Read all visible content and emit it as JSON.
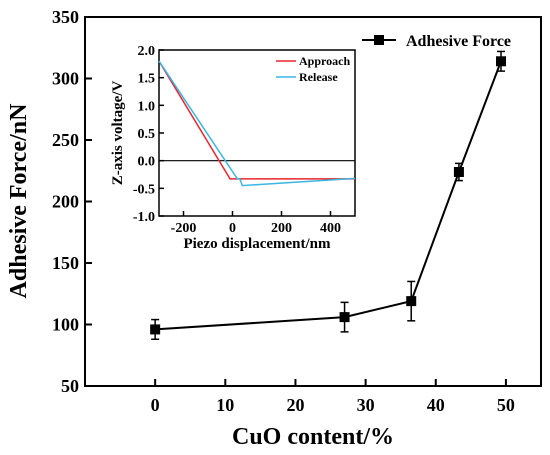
{
  "chart_data": [
    {
      "type": "line",
      "xlabel": "CuO content/%",
      "ylabel": "Adhesive Force/nN",
      "xlim": [
        -10,
        55
      ],
      "ylim": [
        50,
        350
      ],
      "xticks": [
        0,
        10,
        20,
        30,
        40,
        50
      ],
      "yticks": [
        50,
        100,
        150,
        200,
        250,
        300,
        350
      ],
      "legend_position": "top-right",
      "series": [
        {
          "name": "Adhesive Force",
          "color": "#000000",
          "marker": "square",
          "x": [
            0,
            27,
            36.5,
            43.3,
            49.3
          ],
          "y": [
            96,
            106,
            119,
            224,
            314
          ],
          "error": [
            8,
            12,
            16,
            7,
            8
          ]
        }
      ]
    },
    {
      "type": "line",
      "xlabel": "Piezo displacement/nm",
      "ylabel": "Z-axis voltage/V",
      "xlim": [
        -300,
        500
      ],
      "ylim": [
        -1.0,
        2.0
      ],
      "xticks": [
        -200,
        0,
        200,
        400
      ],
      "yticks": [
        -1.0,
        -0.5,
        0.0,
        0.5,
        1.0,
        1.5,
        2.0
      ],
      "legend_position": "top-right",
      "series": [
        {
          "name": "Approach",
          "color": "#e8262b",
          "x": [
            -300,
            -10,
            0,
            500
          ],
          "y": [
            1.8,
            -0.33,
            -0.33,
            -0.33
          ]
        },
        {
          "name": "Release",
          "color": "#3bb6e3",
          "x": [
            -300,
            20,
            30,
            40,
            500
          ],
          "y": [
            1.8,
            -0.33,
            -0.33,
            -0.45,
            -0.32
          ]
        }
      ]
    }
  ]
}
